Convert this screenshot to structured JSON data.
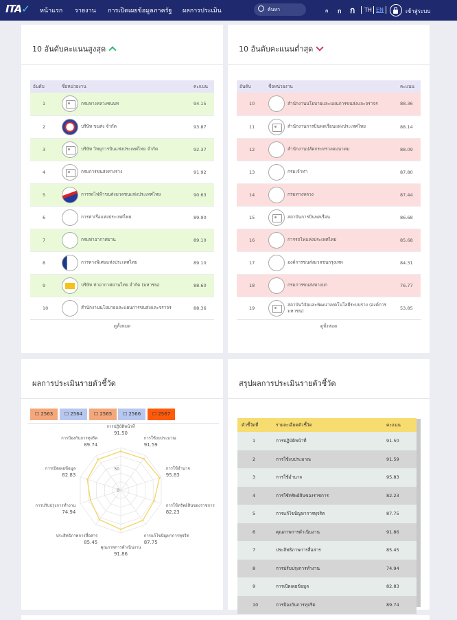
{
  "nav": {
    "logo": "ITA",
    "items": [
      "หน้าแรก",
      "รายงาน",
      "การเปิดเผยข้อมูลภาครัฐ",
      "ผลการประเมิน"
    ],
    "search_placeholder": "ค้นหา",
    "font_sizes": [
      "ก",
      "ก",
      "ก"
    ],
    "langs": [
      "TH",
      "EN"
    ],
    "active_lang": "EN",
    "login": "เข้าสู่ระบบ"
  },
  "top10": {
    "title": "10 อันดับคะแนนสูงสุด",
    "headers": [
      "อันดับ",
      "ชื่อหน่วยงาน",
      "คะแนน"
    ],
    "rows": [
      {
        "rank": "1",
        "name": "กรมทางหลวงชนบท",
        "score": "94.15"
      },
      {
        "rank": "2",
        "name": "บริษัท ขนส่ง จำกัด",
        "score": "93.87"
      },
      {
        "rank": "3",
        "name": "บริษัท วิทยุการบินแห่งประเทศไทย จำกัด",
        "score": "92.37"
      },
      {
        "rank": "4",
        "name": "กรมการขนส่งทางราง",
        "score": "91.92"
      },
      {
        "rank": "5",
        "name": "การรถไฟฟ้าขนส่งมวลชนแห่งประเทศไทย",
        "score": "90.63"
      },
      {
        "rank": "6",
        "name": "การท่าเรือแห่งประเทศไทย",
        "score": "89.90"
      },
      {
        "rank": "7",
        "name": "กรมท่าอากาศยาน",
        "score": "89.10"
      },
      {
        "rank": "8",
        "name": "การทางพิเศษแห่งประเทศไทย",
        "score": "89.10"
      },
      {
        "rank": "9",
        "name": "บริษัท ท่าอากาศยานไทย จำกัด (มหาชน)",
        "score": "88.60"
      },
      {
        "rank": "10",
        "name": "สำนักงานนโยบายและแผนการขนส่งและจราจร",
        "score": "88.36"
      }
    ],
    "see_all": "ดูทั้งหมด"
  },
  "bottom10": {
    "title": "10 อันดับคะแนนต่ำสุด",
    "headers": [
      "อันดับ",
      "ชื่อหน่วยงาน",
      "คะแนน"
    ],
    "rows": [
      {
        "rank": "10",
        "name": "สำนักงานนโยบายและแผนการขนส่งและจราจร",
        "score": "88.36"
      },
      {
        "rank": "11",
        "name": "สำนักงานการบินพลเรือนแห่งประเทศไทย",
        "score": "88.14"
      },
      {
        "rank": "12",
        "name": "สำนักงานปลัดกระทรวงคมนาคม",
        "score": "88.09"
      },
      {
        "rank": "13",
        "name": "กรมเจ้าท่า",
        "score": "87.80"
      },
      {
        "rank": "14",
        "name": "กรมทางหลวง",
        "score": "87.44"
      },
      {
        "rank": "15",
        "name": "สถาบันการบินพลเรือน",
        "score": "86.68"
      },
      {
        "rank": "16",
        "name": "การรถไฟแห่งประเทศไทย",
        "score": "85.68"
      },
      {
        "rank": "17",
        "name": "องค์การขนส่งมวลชนกรุงเทพ",
        "score": "84.31"
      },
      {
        "rank": "18",
        "name": "กรมการขนส่งทางบก",
        "score": "76.77"
      },
      {
        "rank": "19",
        "name": "สถาบันวิจัยและพัฒนาเทคโนโลยีระบบราง (องค์การมหาชน)",
        "score": "53.85"
      }
    ],
    "see_all": "ดูทั้งหมด"
  },
  "radar": {
    "title": "ผลการประเมินรายตัวชี้วัด",
    "years": [
      "2563",
      "2564",
      "2565",
      "2566",
      "2567"
    ],
    "year_colors": [
      "#f4a77a",
      "#b8c7ee",
      "#f4a77a",
      "#b8c7ee",
      "#ff5a0a"
    ],
    "ticks": [
      "50",
      "0"
    ]
  },
  "chart_data": {
    "type": "radar",
    "categories": [
      "การปฏิบัติหน้าที่",
      "การใช้งบประมาณ",
      "การใช้อำนาจ",
      "การใช้ทรัพย์สินของราชการ",
      "การแก้ไขปัญหาการทุจริต",
      "คุณภาพการดำเนินงาน",
      "ประสิทธิภาพการสื่อสาร",
      "การปรับปรุงการทำงาน",
      "การเปิดเผยข้อมูล",
      "การป้องกันการทุจริต"
    ],
    "values": [
      91.5,
      91.59,
      95.83,
      82.23,
      87.75,
      91.86,
      85.45,
      74.94,
      82.83,
      89.74
    ],
    "rlim": [
      0,
      100
    ],
    "color": "#f2d76b"
  },
  "summary": {
    "title": "สรุปผลการประเมินรายตัวชี้วัด",
    "headers": [
      "ตัวชี้วัดที่",
      "รายละเอียดตัวชี้วัด",
      "คะแนน"
    ],
    "rows": [
      {
        "no": "1",
        "name": "การปฏิบัติหน้าที่",
        "score": "91.50"
      },
      {
        "no": "2",
        "name": "การใช้งบประมาณ",
        "score": "91.59"
      },
      {
        "no": "3",
        "name": "การใช้อำนาจ",
        "score": "95.83"
      },
      {
        "no": "4",
        "name": "การใช้ทรัพย์สินของราชการ",
        "score": "82.23"
      },
      {
        "no": "5",
        "name": "การแก้ไขปัญหาการทุจริต",
        "score": "87.75"
      },
      {
        "no": "6",
        "name": "คุณภาพการดำเนินงาน",
        "score": "91.86"
      },
      {
        "no": "7",
        "name": "ประสิทธิภาพการสื่อสาร",
        "score": "85.45"
      },
      {
        "no": "8",
        "name": "การปรับปรุงการทำงาน",
        "score": "74.94"
      },
      {
        "no": "9",
        "name": "การเปิดเผยข้อมูล",
        "score": "82.83"
      },
      {
        "no": "10",
        "name": "การป้องกันการทุจริต",
        "score": "89.74"
      }
    ]
  }
}
